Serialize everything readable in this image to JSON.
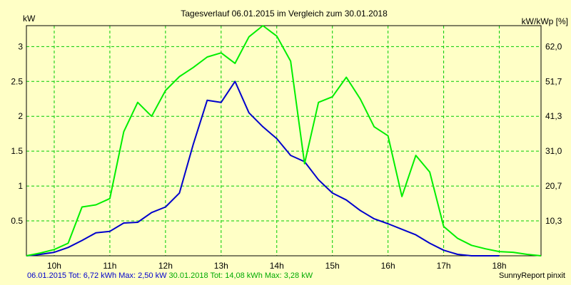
{
  "chart_data": {
    "type": "line",
    "title": "Tagesverlauf 06.01.2015 im Vergleich zum 30.01.2018",
    "ylabel_left": "kW",
    "ylabel_right": "kW/kWp [%]",
    "xlim": [
      9.5,
      18.75
    ],
    "ylim": [
      0,
      3.3
    ],
    "x_ticks": [
      10,
      11,
      12,
      13,
      14,
      15,
      16,
      17,
      18
    ],
    "x_tick_labels": [
      "10h",
      "11h",
      "12h",
      "13h",
      "14h",
      "15h",
      "16h",
      "17h",
      "18h"
    ],
    "y_ticks_left": [
      0.5,
      1,
      1.5,
      2,
      2.5,
      3
    ],
    "y_tick_labels_left": [
      "0.5",
      "1",
      "1.5",
      "2",
      "2.5",
      "3"
    ],
    "y_tick_labels_right": [
      "10,3",
      "20,7",
      "31,0",
      "41,3",
      "51,7",
      "62,0"
    ],
    "grid": true,
    "series": [
      {
        "name": "06.01.2015",
        "color": "#0000cc",
        "x": [
          9.5,
          9.75,
          10.0,
          10.25,
          10.5,
          10.75,
          11.0,
          11.25,
          11.5,
          11.75,
          12.0,
          12.25,
          12.5,
          12.75,
          13.0,
          13.25,
          13.5,
          13.75,
          14.0,
          14.25,
          14.5,
          14.75,
          15.0,
          15.25,
          15.5,
          15.75,
          16.0,
          16.25,
          16.5,
          16.75,
          17.0,
          17.25,
          17.5,
          17.75,
          18.0
        ],
        "values": [
          0.0,
          0.02,
          0.05,
          0.12,
          0.22,
          0.33,
          0.35,
          0.47,
          0.48,
          0.62,
          0.7,
          0.9,
          1.6,
          2.23,
          2.2,
          2.5,
          2.05,
          1.85,
          1.68,
          1.44,
          1.35,
          1.09,
          0.9,
          0.8,
          0.65,
          0.53,
          0.46,
          0.38,
          0.3,
          0.18,
          0.08,
          0.02,
          0.0,
          0.0,
          0.0
        ]
      },
      {
        "name": "30.01.2018",
        "color": "#00ee00",
        "x": [
          9.5,
          9.75,
          10.0,
          10.25,
          10.5,
          10.75,
          11.0,
          11.25,
          11.5,
          11.75,
          12.0,
          12.25,
          12.5,
          12.75,
          13.0,
          13.25,
          13.5,
          13.75,
          14.0,
          14.25,
          14.5,
          14.75,
          15.0,
          15.25,
          15.5,
          15.75,
          16.0,
          16.25,
          16.5,
          16.75,
          17.0,
          17.25,
          17.5,
          17.75,
          18.0,
          18.25,
          18.5,
          18.75
        ],
        "values": [
          0.0,
          0.04,
          0.09,
          0.18,
          0.7,
          0.73,
          0.82,
          1.78,
          2.2,
          2.0,
          2.37,
          2.57,
          2.7,
          2.85,
          2.91,
          2.76,
          3.14,
          3.3,
          3.15,
          2.79,
          1.32,
          2.2,
          2.28,
          2.56,
          2.25,
          1.85,
          1.72,
          0.85,
          1.44,
          1.2,
          0.42,
          0.25,
          0.15,
          0.1,
          0.06,
          0.05,
          0.02,
          0.0
        ]
      }
    ]
  },
  "footer": {
    "series1_text": "06.01.2015 Tot: 6,72 kWh Max: 2,50 kW",
    "series2_text": "30.01.2018 Tot: 14,08 kWh Max: 3,28 kW",
    "brand": "SunnyReport pinxit"
  }
}
